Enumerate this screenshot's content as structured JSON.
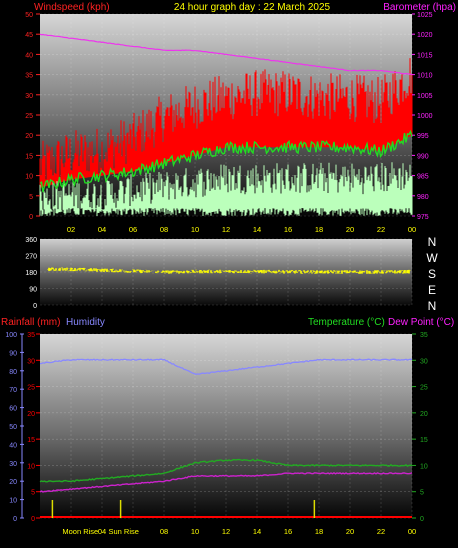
{
  "header": {
    "left_title": "Windspeed (kph)",
    "center_title": "24 hour graph day : 22 March 2025",
    "right_title": "Barometer (hpa)"
  },
  "panel3_header": {
    "rainfall": "Rainfall (mm)",
    "humidity": "Humidity",
    "temperature": "Temperature (°C)",
    "dewpoint": "Dew Point (°C)"
  },
  "compass_labels": [
    "N",
    "W",
    "S",
    "E",
    "N"
  ],
  "moon_label": "Moon Rise",
  "sun_label": "Sun Rise",
  "colors": {
    "wind_avg": "#22dd22",
    "wind_gust": "#ff0000",
    "wind_low": "#bbffbb",
    "barometer": "#ee33ee",
    "direction": "#ffff00",
    "humidity": "#8888ff",
    "temperature": "#22aa22",
    "dewpoint": "#cc22cc",
    "rain": "#ff0000",
    "left_axis_text": "#ff2222",
    "right_axis_text": "#ff22ff",
    "time_axis_text": "#ffff00"
  },
  "chart_data": [
    {
      "type": "line",
      "title": "24 hour graph day : 22 March 2025",
      "x_tick_labels": [
        "02",
        "04",
        "06",
        "08",
        "10",
        "12",
        "14",
        "16",
        "18",
        "20",
        "22",
        "00"
      ],
      "left_axis": {
        "label": "Windspeed (kph)",
        "range": [
          0,
          50
        ],
        "ticks": [
          0,
          5,
          10,
          15,
          20,
          25,
          30,
          35,
          40,
          45,
          50
        ]
      },
      "right_axis": {
        "label": "Barometer (hpa)",
        "range": [
          975,
          1025
        ],
        "ticks": [
          975,
          980,
          985,
          990,
          995,
          1000,
          1005,
          1010,
          1015,
          1020,
          1025
        ]
      },
      "x_hours": [
        0,
        2,
        4,
        6,
        8,
        10,
        12,
        14,
        16,
        18,
        20,
        22,
        24
      ],
      "series": [
        {
          "key": "gust",
          "values": [
            10,
            13,
            14,
            17,
            22,
            25,
            27,
            28,
            28,
            27,
            27,
            26,
            33
          ]
        },
        {
          "key": "avg",
          "values": [
            7,
            9,
            10,
            11,
            13,
            15,
            17,
            17,
            17,
            17,
            17,
            16,
            20
          ]
        },
        {
          "key": "low",
          "values": [
            2,
            3,
            3,
            4,
            5,
            6,
            7,
            7,
            7,
            7,
            7,
            7,
            8
          ]
        },
        {
          "key": "barometer",
          "values": [
            1020,
            1019,
            1018,
            1017,
            1016,
            1016,
            1015,
            1014,
            1013,
            1012,
            1011,
            1011,
            1010
          ]
        }
      ]
    },
    {
      "type": "scatter",
      "left_axis": {
        "range": [
          0,
          360
        ],
        "ticks": [
          0,
          90,
          180,
          270,
          360
        ]
      },
      "x_hours": [
        0,
        2,
        4,
        6,
        8,
        10,
        12,
        14,
        16,
        18,
        20,
        22,
        24
      ],
      "series": [
        {
          "key": "direction",
          "values": [
            195,
            195,
            190,
            185,
            180,
            182,
            183,
            182,
            181,
            180,
            180,
            180,
            182
          ]
        }
      ]
    },
    {
      "type": "line",
      "x_tick_labels": [
        "Moon Rise",
        "04",
        "Sun Rise",
        "08",
        "10",
        "12",
        "14",
        "16",
        "18",
        "20",
        "22",
        "00"
      ],
      "humidity_axis": {
        "label": "Humidity",
        "range": [
          0,
          100
        ],
        "ticks": [
          0,
          10,
          20,
          30,
          40,
          50,
          60,
          70,
          80,
          90,
          100
        ]
      },
      "rain_axis": {
        "label": "Rainfall (mm)",
        "range": [
          0,
          35
        ],
        "ticks": [
          0,
          5,
          10,
          15,
          20,
          25,
          30,
          35
        ]
      },
      "temp_axis": {
        "label": "Temperature (°C)",
        "range": [
          0,
          35
        ],
        "ticks": [
          0,
          5,
          10,
          15,
          20,
          25,
          30,
          35
        ]
      },
      "x_hours": [
        0,
        2,
        4,
        6,
        8,
        10,
        12,
        14,
        16,
        18,
        20,
        22,
        24
      ],
      "series": [
        {
          "key": "humidity",
          "values": [
            84,
            86,
            86,
            86,
            86,
            78,
            80,
            82,
            84,
            86,
            86,
            86,
            86
          ]
        },
        {
          "key": "temperature",
          "values": [
            7,
            7,
            7.5,
            8,
            8.5,
            10.5,
            11,
            11,
            10,
            10,
            10,
            10,
            10
          ]
        },
        {
          "key": "dewpoint",
          "values": [
            5,
            5.5,
            6,
            6.5,
            7,
            8,
            8,
            8,
            8.5,
            8.5,
            8.5,
            8.5,
            8.5
          ]
        },
        {
          "key": "rain",
          "values": [
            0,
            0,
            0,
            0,
            0,
            0,
            0,
            0,
            0,
            0,
            0,
            0,
            0
          ]
        }
      ],
      "markers_hours": [
        0.8,
        5.2,
        17.7
      ]
    }
  ]
}
